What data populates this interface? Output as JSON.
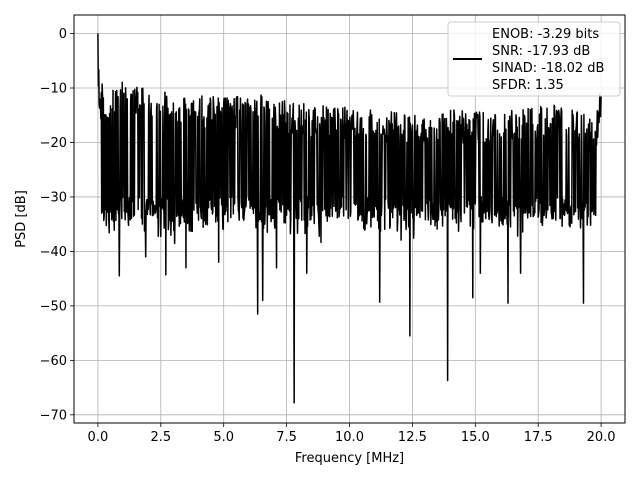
{
  "chart_data": {
    "type": "line",
    "title": "",
    "xlabel": "Frequency [MHz]",
    "ylabel": "PSD [dB]",
    "xlim": [
      -0.95,
      20.95
    ],
    "ylim": [
      -71.5,
      3.4
    ],
    "xticks": [
      0.0,
      2.5,
      5.0,
      7.5,
      10.0,
      12.5,
      15.0,
      17.5,
      20.0
    ],
    "xtick_labels": [
      "0.0",
      "2.5",
      "5.0",
      "7.5",
      "10.0",
      "12.5",
      "15.0",
      "17.5",
      "20.0"
    ],
    "yticks": [
      0,
      -10,
      -20,
      -30,
      -40,
      -50,
      -60,
      -70
    ],
    "ytick_labels": [
      "0",
      "−10",
      "−20",
      "−30",
      "−40",
      "−50",
      "−60",
      "−70"
    ],
    "grid": true,
    "legend": {
      "position": "upper-right",
      "lines": [
        "ENOB: -3.29 bits",
        "SNR: -17.93 dB",
        "SINAD: -18.02 dB",
        "SFDR: 1.35"
      ]
    },
    "series": [
      {
        "color": "#000000",
        "x_range": [
          0.0,
          20.0
        ],
        "points": 1200,
        "noise_floor_db": -23.5,
        "noise_spread_db": 6,
        "envelope_peaks": [
          {
            "x": 0.0,
            "y": 0.0
          },
          {
            "x": 0.05,
            "y": -5.0
          },
          {
            "x": 0.15,
            "y": -9.0
          },
          {
            "x": 0.3,
            "y": -11.0
          },
          {
            "x": 0.8,
            "y": -8.0
          },
          {
            "x": 1.5,
            "y": -9.5
          },
          {
            "x": 2.5,
            "y": -10.5
          },
          {
            "x": 3.2,
            "y": -11.0
          },
          {
            "x": 4.3,
            "y": -11.5
          },
          {
            "x": 5.7,
            "y": -11.5
          },
          {
            "x": 6.3,
            "y": -11.0
          },
          {
            "x": 7.0,
            "y": -12.0
          },
          {
            "x": 8.5,
            "y": -13.0
          },
          {
            "x": 10.0,
            "y": -13.5
          },
          {
            "x": 11.2,
            "y": -14.0
          },
          {
            "x": 12.5,
            "y": -14.5
          },
          {
            "x": 14.0,
            "y": -14.0
          },
          {
            "x": 15.5,
            "y": -14.5
          },
          {
            "x": 17.0,
            "y": -13.5
          },
          {
            "x": 18.7,
            "y": -13.0
          },
          {
            "x": 19.8,
            "y": -15.5
          },
          {
            "x": 20.0,
            "y": -9.0
          }
        ],
        "notable_dips": [
          {
            "x": 0.85,
            "y": -44.5
          },
          {
            "x": 1.9,
            "y": -41.0
          },
          {
            "x": 2.7,
            "y": -44.3
          },
          {
            "x": 3.5,
            "y": -43.0
          },
          {
            "x": 4.8,
            "y": -42.0
          },
          {
            "x": 6.35,
            "y": -51.5
          },
          {
            "x": 6.55,
            "y": -49.0
          },
          {
            "x": 7.1,
            "y": -43.0
          },
          {
            "x": 7.8,
            "y": -67.8
          },
          {
            "x": 8.3,
            "y": -44.0
          },
          {
            "x": 11.2,
            "y": -49.3
          },
          {
            "x": 12.4,
            "y": -55.5
          },
          {
            "x": 13.9,
            "y": -63.7
          },
          {
            "x": 14.9,
            "y": -48.5
          },
          {
            "x": 15.2,
            "y": -44.0
          },
          {
            "x": 16.3,
            "y": -49.5
          },
          {
            "x": 16.8,
            "y": -44.0
          },
          {
            "x": 19.3,
            "y": -49.5
          }
        ]
      }
    ]
  }
}
